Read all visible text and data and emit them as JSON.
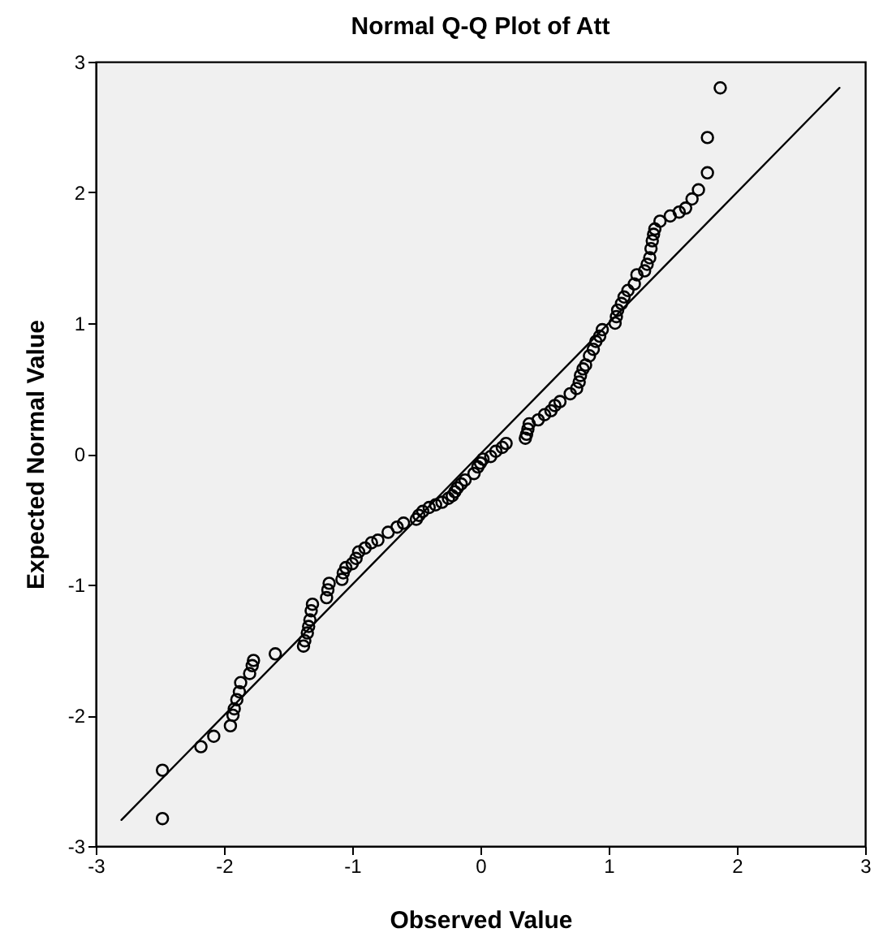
{
  "chart_data": {
    "type": "scatter",
    "title": "Normal Q-Q Plot of Att",
    "xlabel": "Observed Value",
    "ylabel": "Expected Normal Value",
    "xlim": [
      -3,
      3
    ],
    "ylim": [
      -3,
      3
    ],
    "xticks": [
      -3,
      -2,
      -1,
      0,
      1,
      2,
      3
    ],
    "yticks": [
      -3,
      -2,
      -1,
      0,
      1,
      2,
      3
    ],
    "grid": false,
    "series": [
      {
        "color": "#000000",
        "marker": "circle",
        "x": [
          -2.48,
          -2.48,
          -2.18,
          -2.08,
          -1.95,
          -1.93,
          -1.92,
          -1.9,
          -1.88,
          -1.87,
          -1.8,
          -1.78,
          -1.77,
          -1.6,
          -1.38,
          -1.37,
          -1.35,
          -1.34,
          -1.33,
          -1.32,
          -1.31,
          -1.2,
          -1.19,
          -1.18,
          -1.08,
          -1.07,
          -1.05,
          -1.0,
          -0.97,
          -0.95,
          -0.9,
          -0.85,
          -0.8,
          -0.72,
          -0.65,
          -0.6,
          -0.5,
          -0.48,
          -0.45,
          -0.4,
          -0.35,
          -0.3,
          -0.25,
          -0.22,
          -0.2,
          -0.18,
          -0.15,
          -0.12,
          -0.05,
          -0.02,
          0.0,
          0.02,
          0.08,
          0.12,
          0.17,
          0.2,
          0.35,
          0.36,
          0.37,
          0.38,
          0.45,
          0.5,
          0.55,
          0.58,
          0.62,
          0.7,
          0.75,
          0.77,
          0.78,
          0.8,
          0.82,
          0.85,
          0.88,
          0.9,
          0.93,
          0.95,
          1.05,
          1.06,
          1.07,
          1.1,
          1.12,
          1.15,
          1.2,
          1.22,
          1.28,
          1.3,
          1.32,
          1.33,
          1.34,
          1.35,
          1.36,
          1.4,
          1.48,
          1.55,
          1.6,
          1.65,
          1.7,
          1.77,
          1.77,
          1.87
        ],
        "values": [
          -2.79,
          -2.42,
          -2.24,
          -2.16,
          -2.08,
          -2.0,
          -1.95,
          -1.88,
          -1.82,
          -1.75,
          -1.68,
          -1.62,
          -1.58,
          -1.53,
          -1.47,
          -1.43,
          -1.37,
          -1.32,
          -1.27,
          -1.2,
          -1.15,
          -1.1,
          -1.04,
          -0.99,
          -0.96,
          -0.91,
          -0.87,
          -0.84,
          -0.8,
          -0.75,
          -0.72,
          -0.68,
          -0.66,
          -0.6,
          -0.56,
          -0.53,
          -0.5,
          -0.47,
          -0.44,
          -0.41,
          -0.39,
          -0.37,
          -0.34,
          -0.32,
          -0.29,
          -0.26,
          -0.23,
          -0.2,
          -0.15,
          -0.1,
          -0.07,
          -0.04,
          -0.02,
          0.02,
          0.05,
          0.08,
          0.12,
          0.15,
          0.19,
          0.23,
          0.26,
          0.3,
          0.33,
          0.37,
          0.4,
          0.46,
          0.5,
          0.55,
          0.6,
          0.65,
          0.68,
          0.75,
          0.8,
          0.86,
          0.9,
          0.95,
          1.0,
          1.05,
          1.1,
          1.15,
          1.2,
          1.25,
          1.3,
          1.37,
          1.4,
          1.45,
          1.5,
          1.57,
          1.63,
          1.68,
          1.72,
          1.78,
          1.82,
          1.85,
          1.88,
          1.95,
          2.02,
          2.15,
          2.42,
          2.8
        ]
      },
      {
        "type": "line",
        "color": "#000000",
        "x": [
          -2.8,
          2.8
        ],
        "values": [
          -2.8,
          2.8
        ]
      }
    ]
  }
}
